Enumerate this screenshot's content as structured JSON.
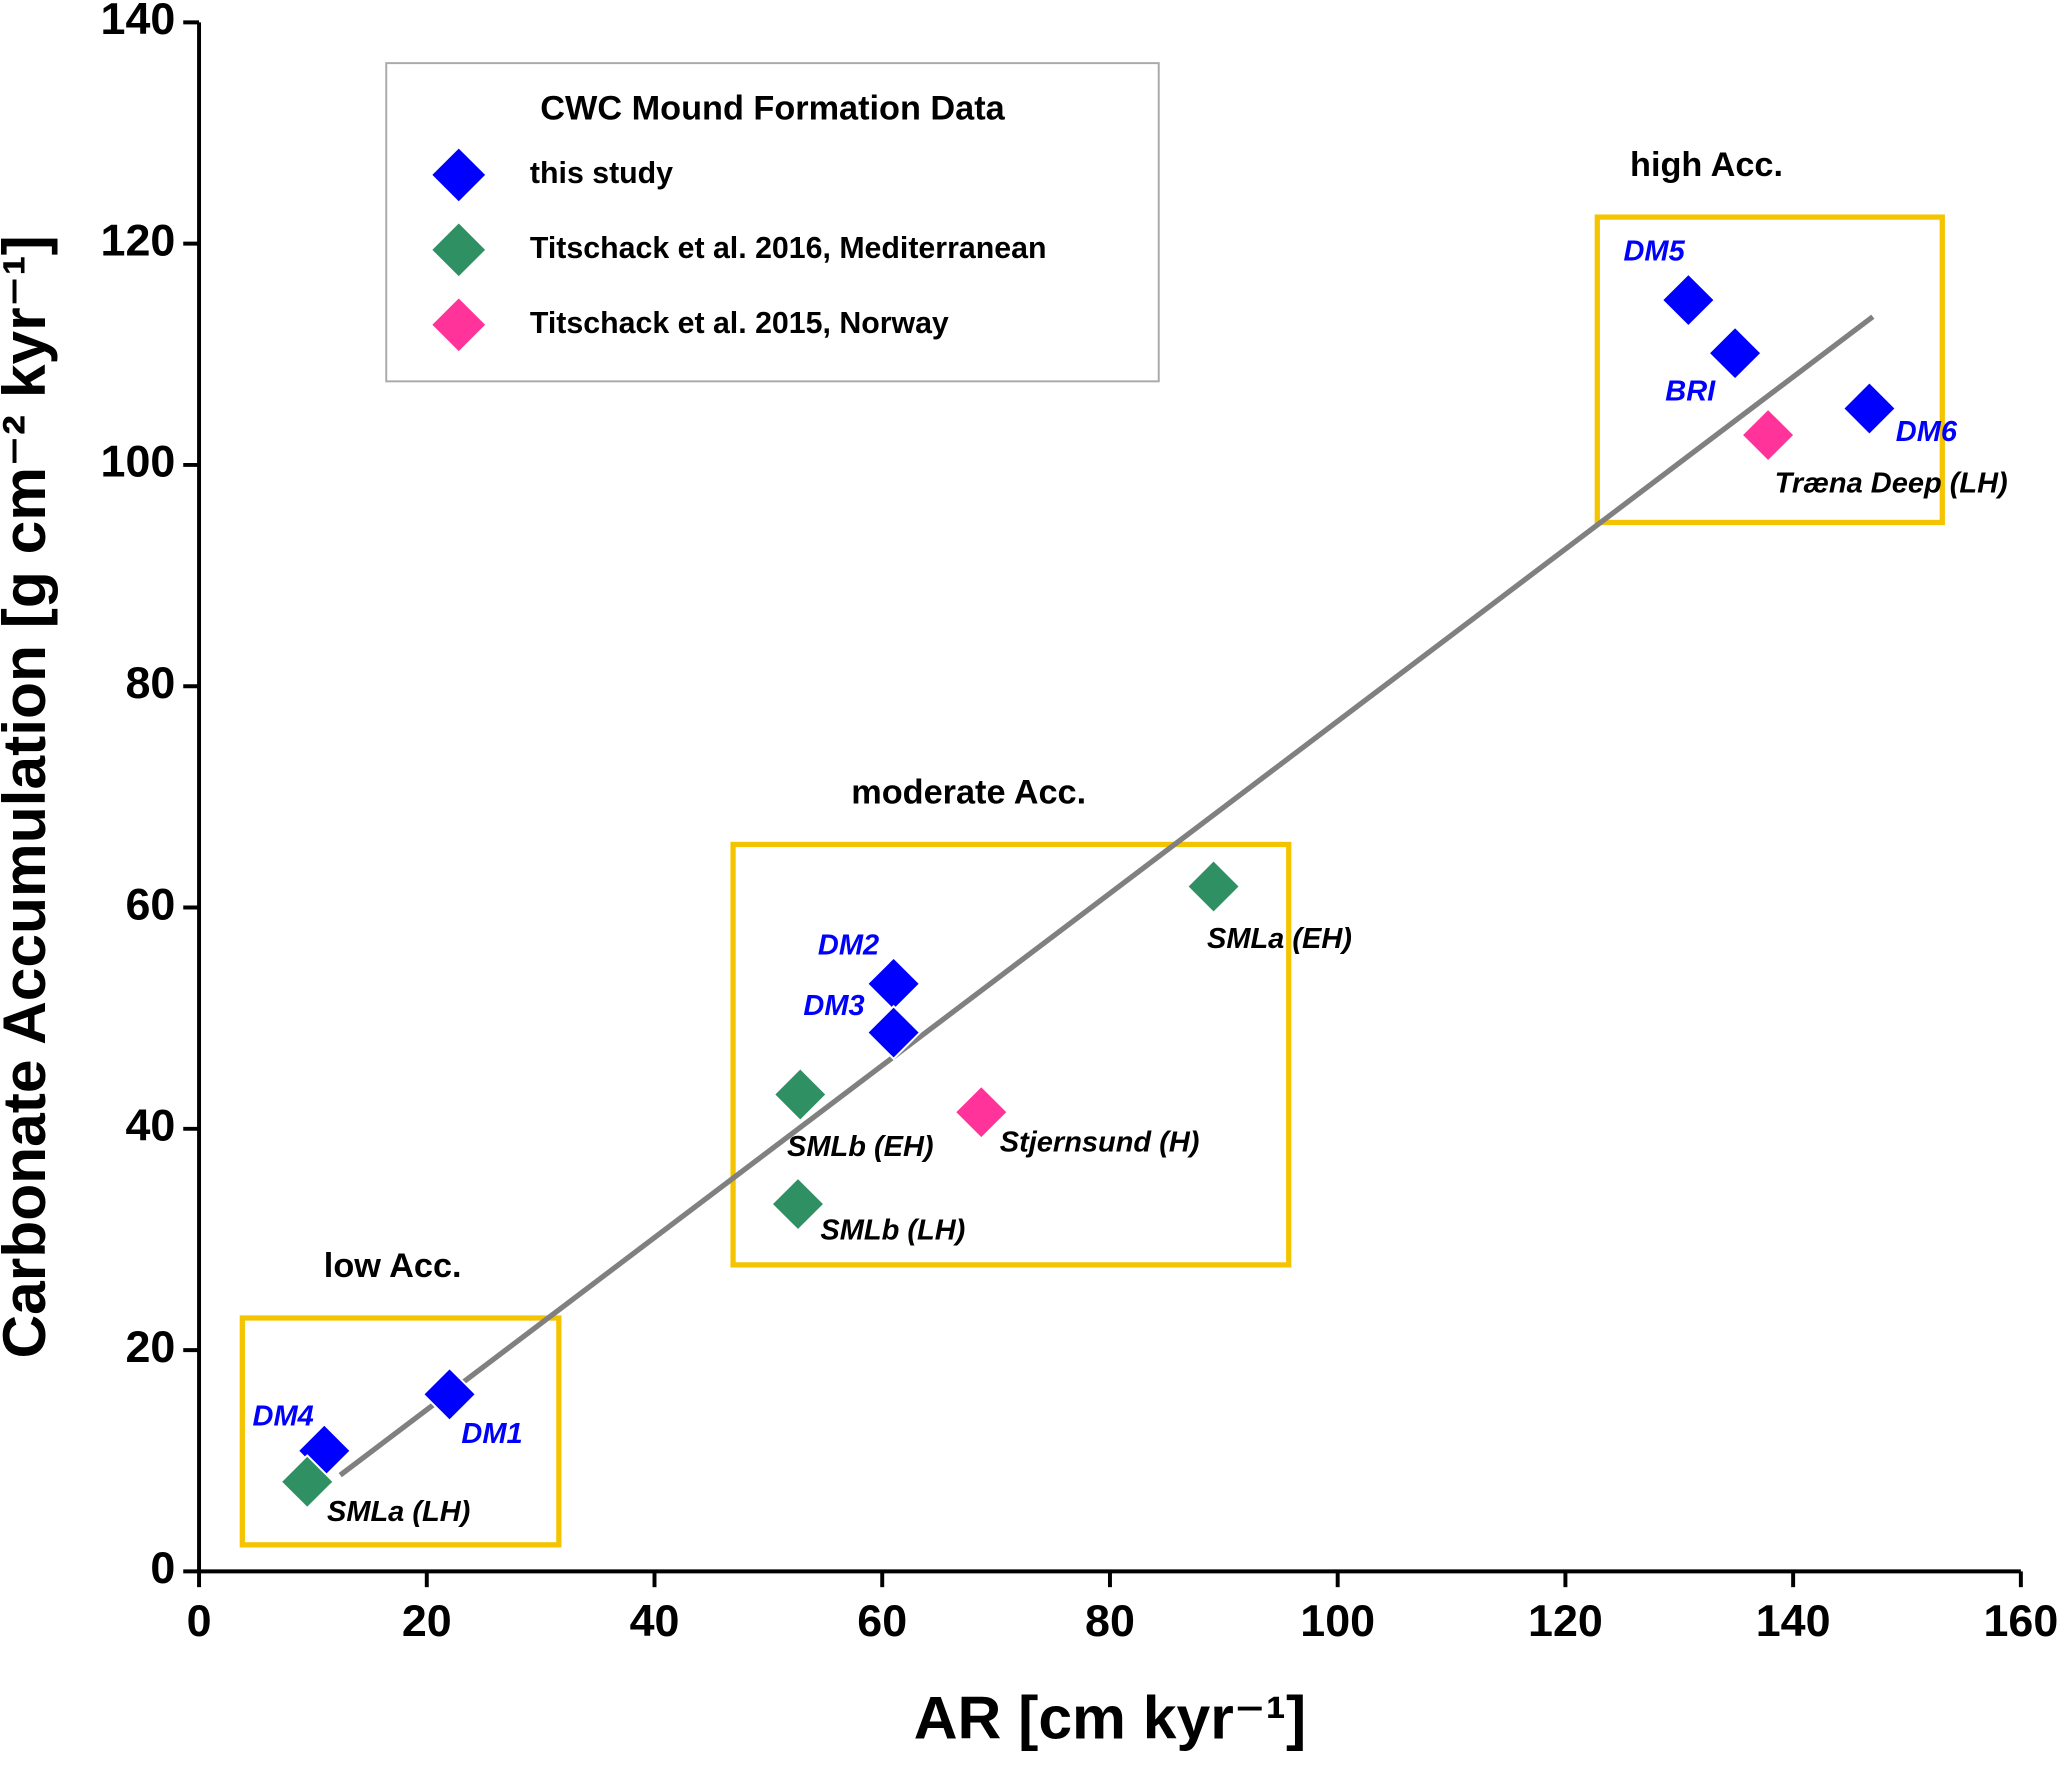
{
  "chart_data": {
    "type": "scatter",
    "x_label": "AR [cm kyr⁻¹]",
    "y_label": "Carbonate Accumulation [g cm⁻² kyr⁻¹]",
    "legend_title": "CWC Mound Formation Data",
    "legend": "upper left",
    "xlim": [
      0,
      160
    ],
    "xticks": [
      0,
      20,
      40,
      60,
      80,
      100,
      120,
      140,
      160
    ],
    "ylim": [
      0,
      140
    ],
    "yticks": [
      0,
      20,
      40,
      60,
      80,
      100,
      120,
      140
    ],
    "grid": false,
    "series": [
      {
        "name": "this study",
        "color": "#0000ff",
        "label_color": "#0000ff",
        "x": [
          11,
          22,
          61,
          61,
          130.8,
          134.9,
          146.7
        ],
        "values": [
          10.9,
          16,
          53.1,
          48.7,
          114.9,
          110.1,
          105.1
        ],
        "labels": [
          "DM4",
          "DM1",
          "DM2",
          "DM3",
          "DM5",
          "BRI",
          "DM6"
        ]
      },
      {
        "name": "Titschack et al. 2016, Mediterranean",
        "color": "#2e9063",
        "label_color": "#000000",
        "x": [
          9.5,
          52.8,
          52.6,
          89.1
        ],
        "values": [
          8.1,
          43.1,
          33.2,
          61.9
        ],
        "labels": [
          "SMLa (LH)",
          "SMLb (EH)",
          "SMLb (LH)",
          "SMLa (EH)"
        ]
      },
      {
        "name": "Titschack et al. 2015, Norway",
        "color": "#ff3399",
        "label_color": "#000000",
        "x": [
          68.7,
          137.8
        ],
        "values": [
          41.5,
          102.7
        ],
        "labels": [
          "Stjernsund (H)",
          "Træna Deep (LH)"
        ]
      }
    ],
    "trend_line": {
      "color": "#808080",
      "x": [
        12.4,
        147.0
      ],
      "values": [
        8.7,
        113.4
      ]
    },
    "regions": [
      {
        "label": "low Acc.",
        "color": "#f5c400",
        "xlim": [
          3.8,
          31.6
        ],
        "ylim": [
          2.4,
          22.9
        ]
      },
      {
        "label": "moderate Acc.",
        "color": "#f5c400",
        "xlim": [
          46.9,
          95.7
        ],
        "ylim": [
          27.7,
          65.7
        ]
      },
      {
        "label": "high Acc.",
        "color": "#f5c400",
        "xlim": [
          122.8,
          153.1
        ],
        "ylim": [
          94.8,
          122.4
        ]
      }
    ]
  }
}
